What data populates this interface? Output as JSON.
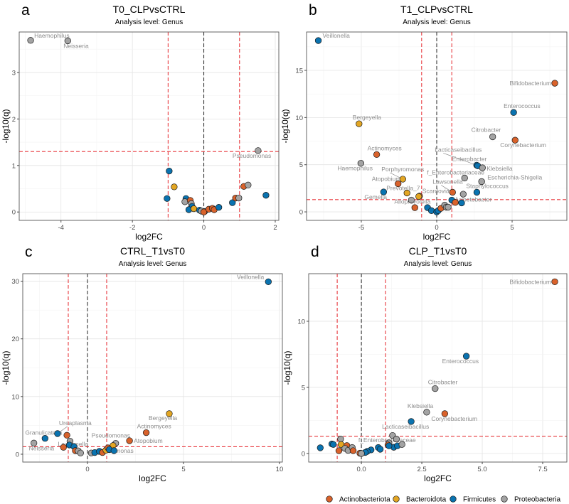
{
  "phylum_colors": {
    "Actinobacteriota": "#D9622B",
    "Bacteroidota": "#E3A623",
    "Firmicutes": "#0A73B0",
    "Proteobacteria": "#A3A3A3"
  },
  "legend": [
    "Actinobacteriota",
    "Bacteroidota",
    "Firmicutes",
    "Proteobacteria"
  ],
  "chart_data": [
    {
      "type": "scatter",
      "panel": "a",
      "title": "T0_CLPvsCTRL",
      "subtitle": "Analysis level: Genus",
      "xlabel": "log2FC",
      "ylabel": "-log10(q)",
      "xlim": [
        -5.17,
        2.1
      ],
      "ylim": [
        -0.18,
        3.87
      ],
      "xticks": [
        "-4",
        "-2",
        "0",
        "2"
      ],
      "yticks": [
        "0",
        "1",
        "2",
        "3"
      ],
      "thresholds": {
        "log2FC": [
          -1,
          1
        ],
        "neg_log10_q": 1.3
      },
      "grid": true,
      "points": [
        {
          "x": -4.85,
          "y": 3.69,
          "phylum": "Proteobacteria",
          "label": "Haemophilus"
        },
        {
          "x": -3.81,
          "y": 3.68,
          "phylum": "Proteobacteria",
          "label": "Neisseria"
        },
        {
          "x": 1.52,
          "y": 1.32,
          "phylum": "Proteobacteria",
          "label": "Pseudomonas"
        },
        {
          "x": -0.97,
          "y": 0.88,
          "phylum": "Firmicutes"
        },
        {
          "x": -0.83,
          "y": 0.54,
          "phylum": "Bacteroidota"
        },
        {
          "x": -1.03,
          "y": 0.29,
          "phylum": "Firmicutes"
        },
        {
          "x": -0.5,
          "y": 0.29,
          "phylum": "Firmicutes"
        },
        {
          "x": -0.53,
          "y": 0.22,
          "phylum": "Proteobacteria"
        },
        {
          "x": -0.38,
          "y": 0.25,
          "phylum": "Actinobacteriota"
        },
        {
          "x": -0.35,
          "y": 0.18,
          "phylum": "Proteobacteria"
        },
        {
          "x": -0.33,
          "y": 0.12,
          "phylum": "Firmicutes"
        },
        {
          "x": -0.42,
          "y": 0.05,
          "phylum": "Firmicutes"
        },
        {
          "x": -0.28,
          "y": 0.07,
          "phylum": "Bacteroidota"
        },
        {
          "x": -0.12,
          "y": 0.04,
          "phylum": "Firmicutes"
        },
        {
          "x": -0.07,
          "y": 0.02,
          "phylum": "Proteobacteria"
        },
        {
          "x": 0.02,
          "y": 0.01,
          "phylum": "Firmicutes"
        },
        {
          "x": 0.0,
          "y": 0.0,
          "phylum": "Actinobacteriota"
        },
        {
          "x": 0.14,
          "y": 0.06,
          "phylum": "Actinobacteriota"
        },
        {
          "x": 0.24,
          "y": 0.08,
          "phylum": "Actinobacteriota"
        },
        {
          "x": 0.29,
          "y": 0.05,
          "phylum": "Actinobacteriota"
        },
        {
          "x": 0.42,
          "y": 0.1,
          "phylum": "Firmicutes"
        },
        {
          "x": 0.8,
          "y": 0.2,
          "phylum": "Firmicutes"
        },
        {
          "x": 0.89,
          "y": 0.3,
          "phylum": "Actinobacteriota"
        },
        {
          "x": 0.98,
          "y": 0.3,
          "phylum": "Proteobacteria"
        },
        {
          "x": 1.12,
          "y": 0.55,
          "phylum": "Actinobacteriota"
        },
        {
          "x": 1.24,
          "y": 0.58,
          "phylum": "Proteobacteria"
        },
        {
          "x": 1.74,
          "y": 0.36,
          "phylum": "Firmicutes"
        }
      ]
    },
    {
      "type": "scatter",
      "panel": "b",
      "title": "T1_CLPvsCTRL",
      "subtitle": "Analysis level: Genus",
      "xlabel": "log2FC",
      "ylabel": "-log10(q)",
      "xlim": [
        -8.63,
        8.63
      ],
      "ylim": [
        -0.9,
        19.07
      ],
      "xticks": [
        "-5",
        "0",
        "5"
      ],
      "yticks": [
        "0",
        "5",
        "10",
        "15"
      ],
      "thresholds": {
        "log2FC": [
          -1,
          1
        ],
        "neg_log10_q": 1.3
      },
      "grid": true,
      "points": [
        {
          "x": -7.85,
          "y": 18.16,
          "phylum": "Firmicutes",
          "label": "Veillonella"
        },
        {
          "x": 7.83,
          "y": 13.64,
          "phylum": "Actinobacteriota",
          "label": "Bifidobacterium"
        },
        {
          "x": 5.1,
          "y": 10.54,
          "phylum": "Firmicutes",
          "label": "Enterococcus"
        },
        {
          "x": -5.15,
          "y": 9.34,
          "phylum": "Bacteroidota",
          "label": "Bergeyella"
        },
        {
          "x": 3.71,
          "y": 7.96,
          "phylum": "Proteobacteria",
          "label": "Citrobacter"
        },
        {
          "x": 5.2,
          "y": 7.6,
          "phylum": "Actinobacteriota",
          "label": "Corynebacterium"
        },
        {
          "x": -3.98,
          "y": 6.08,
          "phylum": "Actinobacteriota",
          "label": "Actinomyces"
        },
        {
          "x": -5.03,
          "y": 5.15,
          "phylum": "Proteobacteria",
          "label": "Haemophilus"
        },
        {
          "x": 2.65,
          "y": 4.95,
          "phylum": "Firmicutes",
          "label": "Lacticaseibacillus"
        },
        {
          "x": 2.72,
          "y": 4.88,
          "phylum": "Firmicutes",
          "label": "Enterobacter"
        },
        {
          "x": 3.03,
          "y": 4.67,
          "phylum": "Proteobacteria",
          "label": "Klebsiella"
        },
        {
          "x": 1.85,
          "y": 3.59,
          "phylum": "Proteobacteria",
          "label": "f_Enterobacteriaceae"
        },
        {
          "x": 2.98,
          "y": 3.21,
          "phylum": "Proteobacteria",
          "label": "Escherichia-Shigella"
        },
        {
          "x": -2.25,
          "y": 3.47,
          "phylum": "Bacteroidota",
          "label": "Porphyromonas"
        },
        {
          "x": -2.56,
          "y": 2.98,
          "phylum": "Actinobacteriota",
          "label": "Atopobium"
        },
        {
          "x": -3.52,
          "y": 2.11,
          "phylum": "Firmicutes",
          "label": "Gemella"
        },
        {
          "x": 2.66,
          "y": 2.08,
          "phylum": "Firmicutes",
          "label": "Staphylococcus"
        },
        {
          "x": 1.05,
          "y": 2.08,
          "phylum": "Actinobacteriota",
          "label": "Lawsonella"
        },
        {
          "x": -1.97,
          "y": 2.0,
          "phylum": "Bacteroidota",
          "label": "Prevotella_7"
        },
        {
          "x": -1.14,
          "y": 1.68,
          "phylum": "Actinobacteriota"
        },
        {
          "x": -1.19,
          "y": 1.63,
          "phylum": "Bacteroidota",
          "label": "Scardovia"
        },
        {
          "x": -1.68,
          "y": 1.25,
          "phylum": "Proteobacteria",
          "label": "Alloprevotella"
        },
        {
          "x": 1.0,
          "y": 1.25,
          "phylum": "Firmicutes",
          "label": "Acinetobacter"
        },
        {
          "x": 1.76,
          "y": 1.88,
          "phylum": "Proteobacteria"
        },
        {
          "x": -1.45,
          "y": 0.45,
          "phylum": "Actinobacteriota"
        },
        {
          "x": -0.61,
          "y": 0.45,
          "phylum": "Firmicutes"
        },
        {
          "x": -0.35,
          "y": 0.13,
          "phylum": "Firmicutes"
        },
        {
          "x": 0.0,
          "y": 0.0,
          "phylum": "Firmicutes"
        },
        {
          "x": 0.1,
          "y": 0.13,
          "phylum": "Firmicutes"
        },
        {
          "x": 0.28,
          "y": 0.38,
          "phylum": "Actinobacteriota"
        },
        {
          "x": 0.53,
          "y": 0.72,
          "phylum": "Proteobacteria"
        },
        {
          "x": 0.64,
          "y": 0.5,
          "phylum": "Proteobacteria"
        },
        {
          "x": 0.76,
          "y": 0.5,
          "phylum": "Proteobacteria"
        },
        {
          "x": 1.23,
          "y": 1.0,
          "phylum": "Actinobacteriota"
        },
        {
          "x": 1.65,
          "y": 0.95,
          "phylum": "Firmicutes"
        }
      ]
    },
    {
      "type": "scatter",
      "panel": "c",
      "title": "CTRL_T1vsT0",
      "subtitle": "Analysis level: Genus",
      "xlabel": "log2FC",
      "ylabel": "-log10(q)",
      "xlim": [
        -3.37,
        10.15
      ],
      "ylim": [
        -1.36,
        31.3
      ],
      "xticks": [
        "0",
        "5",
        "10"
      ],
      "yticks": [
        "0",
        "10",
        "20",
        "30"
      ],
      "thresholds": {
        "log2FC": [
          -1,
          1
        ],
        "neg_log10_q": 1.3
      },
      "grid": true,
      "points": [
        {
          "x": 9.42,
          "y": 29.9,
          "phylum": "Firmicutes",
          "label": "Veillonella"
        },
        {
          "x": 4.26,
          "y": 7.03,
          "phylum": "Bacteroidota",
          "label": "Bergeyella"
        },
        {
          "x": 3.06,
          "y": 3.74,
          "phylum": "Actinobacteriota",
          "label": "Actinomyces"
        },
        {
          "x": 2.19,
          "y": 2.34,
          "phylum": "Actinobacteriota",
          "label": "Atopobium"
        },
        {
          "x": 1.47,
          "y": 1.89,
          "phylum": "Proteobacteria",
          "label": "Pseudomonas"
        },
        {
          "x": 1.33,
          "y": 1.5,
          "phylum": "Bacteroidota"
        },
        {
          "x": -2.21,
          "y": 2.75,
          "phylum": "Firmicutes",
          "label": "Granulicatella"
        },
        {
          "x": -2.79,
          "y": 1.93,
          "phylum": "Proteobacteria",
          "label": "Neisseria"
        },
        {
          "x": -1.56,
          "y": 3.58,
          "phylum": "Firmicutes",
          "label": "Ureaplasma"
        },
        {
          "x": -1.07,
          "y": 3.29,
          "phylum": "Actinobacteriota"
        },
        {
          "x": -0.91,
          "y": 2.26,
          "phylum": "Proteobacteria",
          "label": "Lawsonella"
        },
        {
          "x": -1.25,
          "y": 1.2,
          "phylum": "Actinobacteriota"
        },
        {
          "x": -0.94,
          "y": 1.6,
          "phylum": "Firmicutes"
        },
        {
          "x": -0.7,
          "y": 1.32,
          "phylum": "Firmicutes"
        },
        {
          "x": -0.63,
          "y": 0.62,
          "phylum": "Actinobacteriota"
        },
        {
          "x": -0.48,
          "y": 0.58,
          "phylum": "Proteobacteria"
        },
        {
          "x": -0.36,
          "y": 0.21,
          "phylum": "Proteobacteria"
        },
        {
          "x": 0.2,
          "y": 0.21,
          "phylum": "Proteobacteria"
        },
        {
          "x": 0.38,
          "y": 0.29,
          "phylum": "Firmicutes"
        },
        {
          "x": 0.62,
          "y": 0.5,
          "phylum": "Firmicutes"
        },
        {
          "x": 0.78,
          "y": 0.29,
          "phylum": "Actinobacteriota"
        },
        {
          "x": 0.96,
          "y": 0.7,
          "phylum": "Bacteroidota"
        },
        {
          "x": 1.07,
          "y": 1.1,
          "phylum": "Actinobacteriota"
        },
        {
          "x": 1.14,
          "y": 0.8,
          "phylum": "Firmicutes"
        },
        {
          "x": 1.38,
          "y": 0.62,
          "phylum": "Firmicutes",
          "label": "monas"
        }
      ]
    },
    {
      "type": "scatter",
      "panel": "d",
      "title": "CLP_T1vsT0",
      "subtitle": "Analysis level: Genus",
      "xlabel": "log2FC",
      "ylabel": "-log10(q)",
      "xlim": [
        -2.18,
        8.5
      ],
      "ylim": [
        -0.65,
        13.6
      ],
      "xticks": [
        "0.0",
        "2.5",
        "5.0",
        "7.5"
      ],
      "yticks": [
        "0",
        "5",
        "10"
      ],
      "thresholds": {
        "log2FC": [
          -1,
          1
        ],
        "neg_log10_q": 1.3
      },
      "grid": true,
      "points": [
        {
          "x": 8.0,
          "y": 12.99,
          "phylum": "Actinobacteriota",
          "label": "Bifidobacterium"
        },
        {
          "x": 4.34,
          "y": 7.36,
          "phylum": "Firmicutes",
          "label": "Enterococcus"
        },
        {
          "x": 3.05,
          "y": 4.91,
          "phylum": "Proteobacteria",
          "label": "Citrobacter"
        },
        {
          "x": 2.7,
          "y": 3.12,
          "phylum": "Proteobacteria",
          "label": "Klebsiella"
        },
        {
          "x": 3.45,
          "y": 3.01,
          "phylum": "Actinobacteriota",
          "label": "Corynebacterium"
        },
        {
          "x": 2.06,
          "y": 2.42,
          "phylum": "Firmicutes",
          "label": "Lacticaseibacillus"
        },
        {
          "x": 1.29,
          "y": 1.36,
          "phylum": "Proteobacteria"
        },
        {
          "x": 1.45,
          "y": 1.09,
          "phylum": "Proteobacteria"
        },
        {
          "x": 1.14,
          "y": 0.8,
          "phylum": "Proteobacteria",
          "label": "f_Enterobacteriaceae"
        },
        {
          "x": 1.1,
          "y": 0.65,
          "phylum": "Actinobacteriota"
        },
        {
          "x": 1.34,
          "y": 0.47,
          "phylum": "Firmicutes"
        },
        {
          "x": 1.49,
          "y": 0.58,
          "phylum": "Firmicutes"
        },
        {
          "x": 1.68,
          "y": 0.68,
          "phylum": "Proteobacteria"
        },
        {
          "x": 1.14,
          "y": 0.58,
          "phylum": "Firmicutes"
        },
        {
          "x": 0.7,
          "y": 0.45,
          "phylum": "Firmicutes"
        },
        {
          "x": 0.78,
          "y": 0.32,
          "phylum": "Firmicutes"
        },
        {
          "x": 0.4,
          "y": 0.27,
          "phylum": "Firmicutes"
        },
        {
          "x": 0.24,
          "y": 0.16,
          "phylum": "Firmicutes"
        },
        {
          "x": 0.16,
          "y": 0.08,
          "phylum": "Firmicutes"
        },
        {
          "x": -0.06,
          "y": 0.02,
          "phylum": "Actinobacteriota"
        },
        {
          "x": 0.0,
          "y": 0.0,
          "phylum": "Proteobacteria"
        },
        {
          "x": -1.7,
          "y": 0.43,
          "phylum": "Firmicutes"
        },
        {
          "x": -1.22,
          "y": 0.72,
          "phylum": "Firmicutes"
        },
        {
          "x": -1.16,
          "y": 0.68,
          "phylum": "Firmicutes"
        },
        {
          "x": -0.86,
          "y": 1.09,
          "phylum": "Proteobacteria"
        },
        {
          "x": -0.84,
          "y": 0.68,
          "phylum": "Bacteroidota"
        },
        {
          "x": -0.93,
          "y": 0.21,
          "phylum": "Actinobacteriota"
        },
        {
          "x": -0.6,
          "y": 0.6,
          "phylum": "Actinobacteriota"
        },
        {
          "x": -0.68,
          "y": 0.38,
          "phylum": "Proteobacteria"
        },
        {
          "x": -0.55,
          "y": 0.23,
          "phylum": "Proteobacteria"
        },
        {
          "x": -0.38,
          "y": 0.45,
          "phylum": "Proteobacteria"
        },
        {
          "x": -0.34,
          "y": 0.21,
          "phylum": "Actinobacteriota"
        }
      ]
    }
  ]
}
